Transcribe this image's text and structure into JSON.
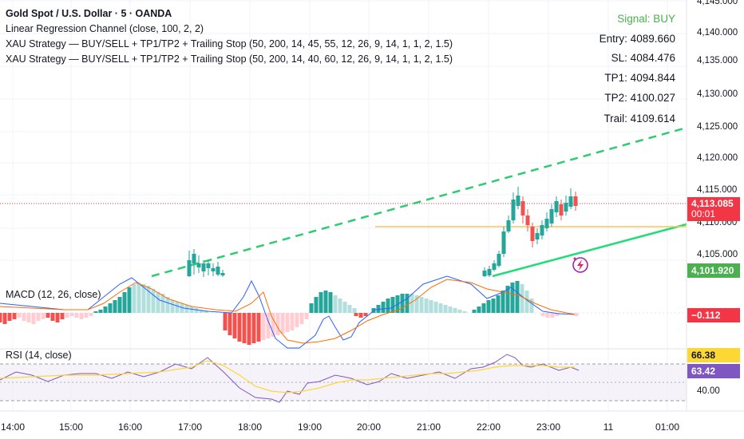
{
  "legend": {
    "title": "Gold Spot / U.S. Dollar · 5 · OANDA",
    "lines": [
      "Linear Regression Channel (close, 100, 2, 2)",
      "XAU Strategy — BUY/SELL + TP1/TP2 + Trailing Stop (50, 200, 14, 45, 55, 12, 26, 9, 14, 1, 1, 2, 1.5)",
      "XAU Strategy — BUY/SELL + TP1/TP2 + Trailing Stop (50, 200, 14, 40, 60, 12, 26, 9, 14, 1, 1, 2, 1.5)"
    ]
  },
  "signal_panel": {
    "signal": "Signal: BUY",
    "entry": "Entry: 4089.660",
    "sl": "SL: 4084.476",
    "tp1": "TP1: 4094.844",
    "tp2": "TP2: 4100.027",
    "trail": "Trail: 4109.614",
    "signal_color": "#4caf50"
  },
  "price_axis": {
    "labels": [
      "4,145.000",
      "4,140.000",
      "4,135.000",
      "4,130.000",
      "4,125.000",
      "4,120.000",
      "4,115.000",
      "4,110.000",
      "4,105.000"
    ]
  },
  "price_tags": {
    "last_price": "4,113.085",
    "countdown": "00:01",
    "channel_low": "4,101.920",
    "macd_value": "−0.112",
    "rsi_ma": "66.38",
    "rsi_value": "63.42",
    "rsi_level": "40.00"
  },
  "colors": {
    "up": "#26a69a",
    "down": "#ef5350",
    "channel_green": "#22ab6b",
    "channel_dashed": "#2ecc71",
    "trail_line": "#f7c55a",
    "macd_line": "#2962ff",
    "signal_line": "#ff6d00",
    "rsi_line": "#7e57c2",
    "rsi_ma": "#fdd835",
    "last_price_tag": "#f23645",
    "channel_tag": "#4caf50",
    "rsi_value_tag": "#7e57c2",
    "rsi_ma_tag": "#fdd835"
  },
  "time_axis": {
    "labels": [
      "14:00",
      "15:00",
      "16:00",
      "17:00",
      "18:00",
      "19:00",
      "20:00",
      "21:00",
      "22:00",
      "23:00",
      "11",
      "01:00"
    ]
  },
  "panes": {
    "macd_label": "MACD (12, 26, close)",
    "rsi_label": "RSI (14, close)"
  },
  "icons": {
    "strategy_marker": "lightning-circle-icon"
  }
}
